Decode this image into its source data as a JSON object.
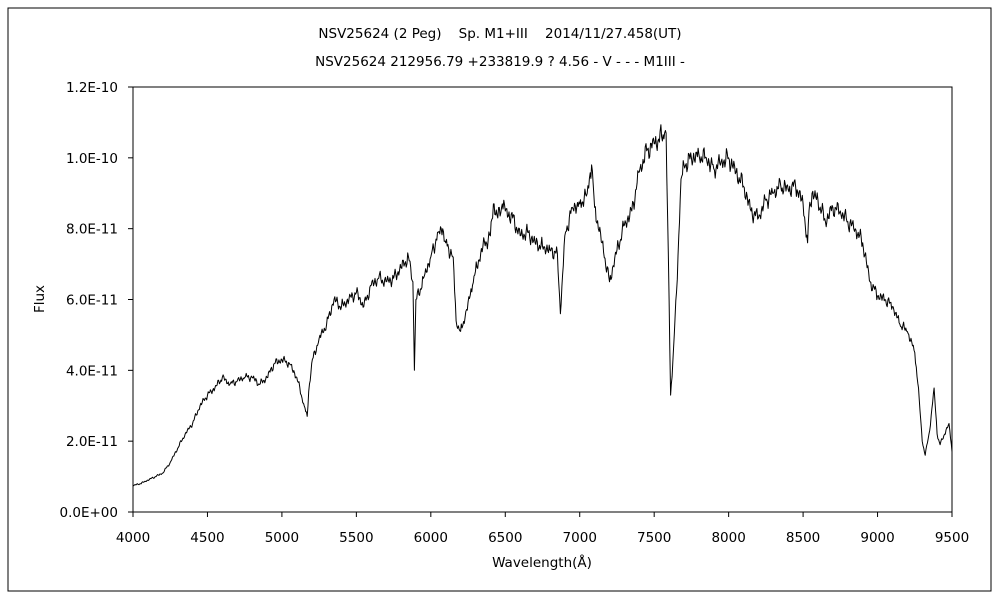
{
  "chart_data": {
    "type": "line",
    "title": "NSV25624 (2 Peg)    Sp. M1+III    2014/11/27.458(UT)",
    "subtitle": "NSV25624 212956.79 +233819.9 ? 4.56 - V - - - M1III -",
    "xlabel": "Wavelength(Å)",
    "ylabel": "Flux",
    "xlim": [
      4000,
      9500
    ],
    "ylim": [
      0,
      1.2e-10
    ],
    "x_ticks": [
      4000,
      4500,
      5000,
      5500,
      6000,
      6500,
      7000,
      7500,
      8000,
      8500,
      9000,
      9500
    ],
    "x_tick_labels": [
      "4000",
      "4500",
      "5000",
      "5500",
      "6000",
      "6500",
      "7000",
      "7500",
      "8000",
      "8500",
      "9000",
      "9500"
    ],
    "y_ticks": [
      0,
      2e-11,
      4e-11,
      6e-11,
      8e-11,
      1e-10,
      1.2e-10
    ],
    "y_tick_labels": [
      "0.0E+00",
      "2.0E-11",
      "4.0E-11",
      "6.0E-11",
      "8.0E-11",
      "1.0E-10",
      "1.2E-10"
    ],
    "grid": false,
    "legend": "none",
    "series": [
      {
        "color": "#000000",
        "x": [
          4000,
          4050,
          4100,
          4150,
          4200,
          4250,
          4300,
          4350,
          4400,
          4450,
          4500,
          4550,
          4600,
          4650,
          4700,
          4750,
          4800,
          4850,
          4900,
          4950,
          5000,
          5050,
          5100,
          5150,
          5170,
          5180,
          5200,
          5250,
          5300,
          5350,
          5400,
          5450,
          5500,
          5550,
          5600,
          5650,
          5700,
          5750,
          5800,
          5850,
          5880,
          5890,
          5900,
          5930,
          5950,
          6000,
          6050,
          6080,
          6100,
          6150,
          6170,
          6200,
          6230,
          6280,
          6300,
          6350,
          6400,
          6420,
          6450,
          6480,
          6500,
          6550,
          6600,
          6650,
          6700,
          6750,
          6800,
          6850,
          6870,
          6900,
          6950,
          7000,
          7050,
          7080,
          7100,
          7150,
          7200,
          7250,
          7300,
          7350,
          7400,
          7450,
          7500,
          7550,
          7570,
          7580,
          7600,
          7610,
          7630,
          7650,
          7680,
          7700,
          7750,
          7800,
          7850,
          7900,
          7950,
          8000,
          8050,
          8100,
          8150,
          8200,
          8250,
          8300,
          8350,
          8400,
          8450,
          8500,
          8530,
          8540,
          8560,
          8600,
          8650,
          8700,
          8750,
          8800,
          8850,
          8900,
          8950,
          9000,
          9050,
          9100,
          9150,
          9200,
          9250,
          9280,
          9300,
          9320,
          9350,
          9380,
          9400,
          9420,
          9450,
          9480,
          9500
        ],
        "y": [
          7.5e-12,
          8e-12,
          9e-12,
          1e-11,
          1.1e-11,
          1.4e-11,
          1.8e-11,
          2.2e-11,
          2.5e-11,
          3e-11,
          3.3e-11,
          3.5e-11,
          3.8e-11,
          3.6e-11,
          3.7e-11,
          3.8e-11,
          3.8e-11,
          3.6e-11,
          3.8e-11,
          4.2e-11,
          4.3e-11,
          4.2e-11,
          3.8e-11,
          3e-11,
          2.7e-11,
          3.4e-11,
          4.2e-11,
          4.9e-11,
          5.3e-11,
          6e-11,
          5.8e-11,
          6e-11,
          6.2e-11,
          5.8e-11,
          6.4e-11,
          6.6e-11,
          6.5e-11,
          6.6e-11,
          6.9e-11,
          7.2e-11,
          6.5e-11,
          4e-11,
          6e-11,
          6.3e-11,
          6.6e-11,
          7.2e-11,
          7.9e-11,
          8e-11,
          7.6e-11,
          7.2e-11,
          5.4e-11,
          5.1e-11,
          5.5e-11,
          6.4e-11,
          6.8e-11,
          7.5e-11,
          7.8e-11,
          8.7e-11,
          8.3e-11,
          8.7e-11,
          8.5e-11,
          8.3e-11,
          7.8e-11,
          7.9e-11,
          7.6e-11,
          7.5e-11,
          7.4e-11,
          7.3e-11,
          5.6e-11,
          7.8e-11,
          8.6e-11,
          8.7e-11,
          9e-11,
          9.8e-11,
          8.6e-11,
          7.6e-11,
          6.5e-11,
          7.4e-11,
          8.1e-11,
          8.5e-11,
          9.6e-11,
          1.02e-10,
          1.04e-10,
          1.06e-10,
          1.07e-10,
          1.07e-10,
          6e-11,
          3.3e-11,
          4.6e-11,
          6.2e-11,
          9.4e-11,
          9.8e-11,
          1e-10,
          1.01e-10,
          1e-10,
          9.7e-11,
          9.9e-11,
          1e-10,
          9.6e-11,
          9.2e-11,
          8.5e-11,
          8.3e-11,
          8.8e-11,
          9e-11,
          9.2e-11,
          9.1e-11,
          9.2e-11,
          8.7e-11,
          7.6e-11,
          8.5e-11,
          9e-11,
          8.8e-11,
          8.2e-11,
          8.6e-11,
          8.5e-11,
          8.2e-11,
          8e-11,
          7.6e-11,
          6.5e-11,
          6.1e-11,
          6e-11,
          5.8e-11,
          5.3e-11,
          5.1e-11,
          4.5e-11,
          3.2e-11,
          2e-11,
          1.6e-11,
          2.3e-11,
          3.5e-11,
          2.2e-11,
          1.9e-11,
          2.2e-11,
          2.5e-11,
          1.7e-11
        ]
      }
    ]
  }
}
